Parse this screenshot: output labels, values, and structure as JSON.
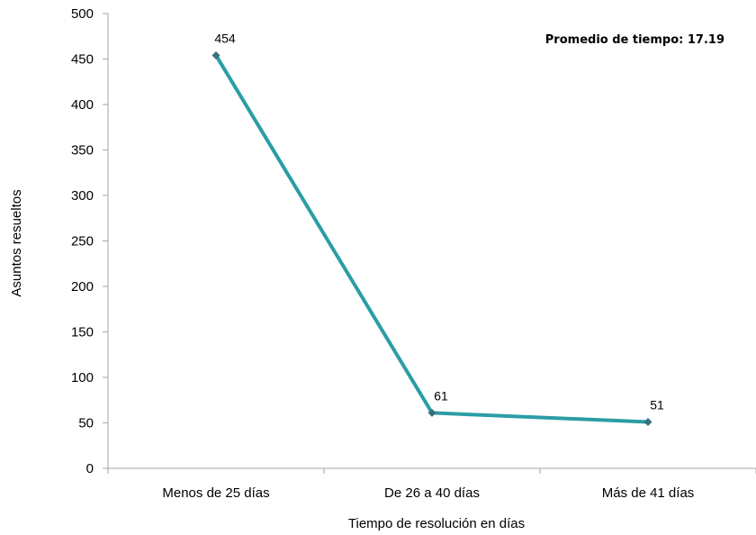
{
  "chart_data": {
    "type": "line",
    "title": "",
    "xlabel": "Tiempo de resolución en días",
    "ylabel": "Asuntos resueltos",
    "categories": [
      "Menos de 25 días",
      "De 26 a 40 días",
      "Más de 41 días"
    ],
    "series": [
      {
        "values": [
          454,
          61,
          51
        ]
      }
    ],
    "data_labels": [
      "454",
      "61",
      "51"
    ],
    "ylim": [
      0,
      500
    ],
    "yticks": [
      0,
      50,
      100,
      150,
      200,
      250,
      300,
      350,
      400,
      450,
      500
    ],
    "ytick_labels": [
      "0",
      "50",
      "100",
      "150",
      "200",
      "250",
      "300",
      "350",
      "400",
      "450",
      "500"
    ],
    "annotation": "Promedio de tiempo: 17.19",
    "grid": false,
    "legend": "none",
    "colors": {
      "line": "#2a9da6",
      "marker": "#3b6f7c",
      "axis": "#a6a6a6"
    }
  }
}
